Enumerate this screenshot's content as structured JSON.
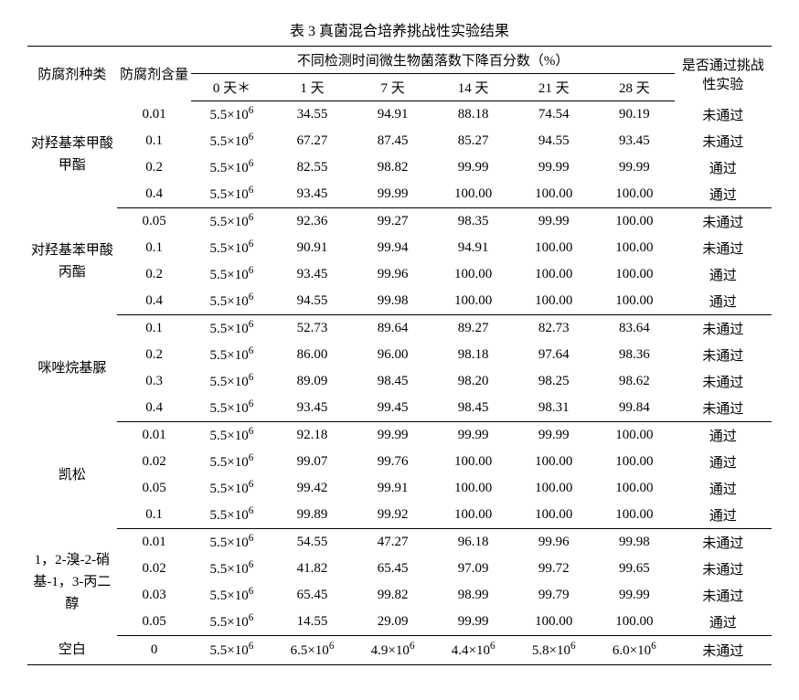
{
  "caption": "表 3 真菌混合培养挑战性实验结果",
  "header": {
    "type": "防腐剂种类",
    "amount": "防腐剂含量",
    "days_span": "不同检测时间微生物菌落数下降百分数（%）",
    "result": "是否通过挑战性实验",
    "days": [
      "0 天＊",
      "1 天",
      "7 天",
      "14 天",
      "21 天",
      "28 天"
    ]
  },
  "initial": "5.5×10⁶",
  "groups": [
    {
      "name": "对羟基苯甲酸甲酯",
      "rows": [
        {
          "amount": "0.01",
          "v": [
            "34.55",
            "94.91",
            "88.18",
            "74.54",
            "90.19"
          ],
          "res": "未通过"
        },
        {
          "amount": "0.1",
          "v": [
            "67.27",
            "87.45",
            "85.27",
            "94.55",
            "93.45"
          ],
          "res": "未通过"
        },
        {
          "amount": "0.2",
          "v": [
            "82.55",
            "98.82",
            "99.99",
            "99.99",
            "99.99"
          ],
          "res": "通过"
        },
        {
          "amount": "0.4",
          "v": [
            "93.45",
            "99.99",
            "100.00",
            "100.00",
            "100.00"
          ],
          "res": "通过"
        }
      ]
    },
    {
      "name": "对羟基苯甲酸丙酯",
      "rows": [
        {
          "amount": "0.05",
          "v": [
            "92.36",
            "99.27",
            "98.35",
            "99.99",
            "100.00"
          ],
          "res": "未通过"
        },
        {
          "amount": "0.1",
          "v": [
            "90.91",
            "99.94",
            "94.91",
            "100.00",
            "100.00"
          ],
          "res": "未通过"
        },
        {
          "amount": "0.2",
          "v": [
            "93.45",
            "99.96",
            "100.00",
            "100.00",
            "100.00"
          ],
          "res": "通过"
        },
        {
          "amount": "0.4",
          "v": [
            "94.55",
            "99.98",
            "100.00",
            "100.00",
            "100.00"
          ],
          "res": "通过"
        }
      ]
    },
    {
      "name": "咪唑烷基脲",
      "rows": [
        {
          "amount": "0.1",
          "v": [
            "52.73",
            "89.64",
            "89.27",
            "82.73",
            "83.64"
          ],
          "res": "未通过"
        },
        {
          "amount": "0.2",
          "v": [
            "86.00",
            "96.00",
            "98.18",
            "97.64",
            "98.36"
          ],
          "res": "未通过"
        },
        {
          "amount": "0.3",
          "v": [
            "89.09",
            "98.45",
            "98.20",
            "98.25",
            "98.62"
          ],
          "res": "未通过"
        },
        {
          "amount": "0.4",
          "v": [
            "93.45",
            "99.45",
            "98.45",
            "98.31",
            "99.84"
          ],
          "res": "未通过"
        }
      ]
    },
    {
      "name": "凯松",
      "rows": [
        {
          "amount": "0.01",
          "v": [
            "92.18",
            "99.99",
            "99.99",
            "99.99",
            "100.00"
          ],
          "res": "通过"
        },
        {
          "amount": "0.02",
          "v": [
            "99.07",
            "99.76",
            "100.00",
            "100.00",
            "100.00"
          ],
          "res": "通过"
        },
        {
          "amount": "0.05",
          "v": [
            "99.42",
            "99.91",
            "100.00",
            "100.00",
            "100.00"
          ],
          "res": "通过"
        },
        {
          "amount": "0.1",
          "v": [
            "99.89",
            "99.92",
            "100.00",
            "100.00",
            "100.00"
          ],
          "res": "通过"
        }
      ]
    },
    {
      "name": "1，2-溴-2-硝基-1，3-丙二醇",
      "rows": [
        {
          "amount": "0.01",
          "v": [
            "54.55",
            "47.27",
            "96.18",
            "99.96",
            "99.98"
          ],
          "res": "未通过"
        },
        {
          "amount": "0.02",
          "v": [
            "41.82",
            "65.45",
            "97.09",
            "99.72",
            "99.65"
          ],
          "res": "未通过"
        },
        {
          "amount": "0.03",
          "v": [
            "65.45",
            "99.82",
            "98.99",
            "99.79",
            "99.99"
          ],
          "res": "未通过"
        },
        {
          "amount": "0.05",
          "v": [
            "14.55",
            "29.09",
            "99.99",
            "100.00",
            "100.00"
          ],
          "res": "通过"
        }
      ]
    }
  ],
  "blank": {
    "name": "空白",
    "amount": "0",
    "v": [
      "5.5×10⁶",
      "6.5×10⁶",
      "4.9×10⁶",
      "4.4×10⁶",
      "5.8×10⁶",
      "6.0×10⁶"
    ],
    "res": "未通过"
  }
}
